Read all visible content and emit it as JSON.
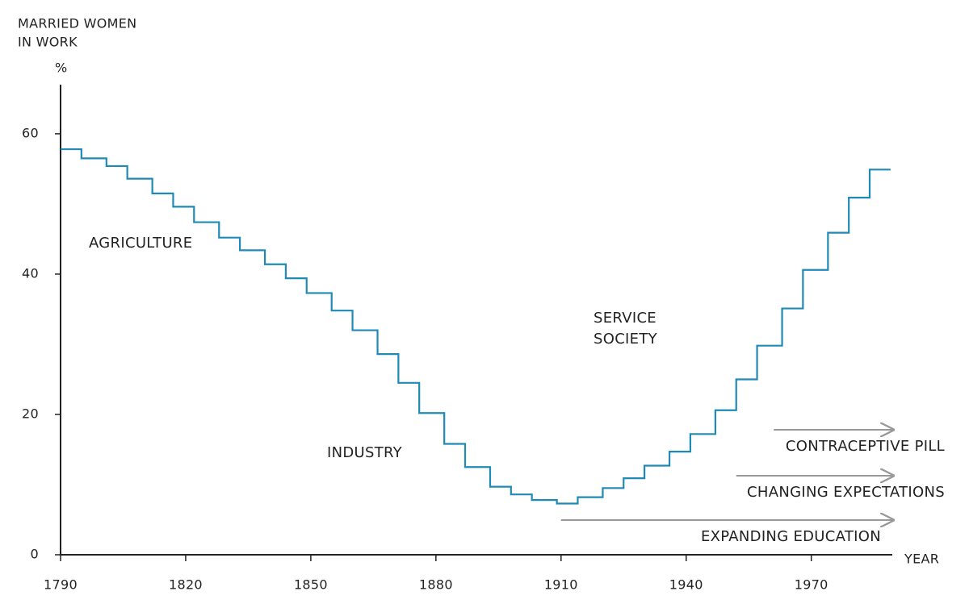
{
  "chart_data": {
    "type": "step",
    "ylabel": [
      "MARRIED WOMEN",
      "IN WORK"
    ],
    "yunit": "%",
    "xlabel": "YEAR",
    "x": [
      1790,
      1795,
      1801,
      1806,
      1812,
      1817,
      1822,
      1828,
      1833,
      1839,
      1844,
      1849,
      1855,
      1860,
      1866,
      1871,
      1876,
      1882,
      1887,
      1893,
      1898,
      1903,
      1909,
      1914,
      1920,
      1925,
      1930,
      1936,
      1941,
      1947,
      1952,
      1957,
      1963,
      1968,
      1974,
      1979,
      1984,
      1989
    ],
    "values": [
      57.8,
      56.5,
      55.4,
      53.6,
      51.5,
      49.6,
      47.4,
      45.2,
      43.4,
      41.4,
      39.4,
      37.3,
      34.8,
      32,
      28.6,
      24.5,
      20.2,
      15.8,
      12.5,
      9.7,
      8.6,
      7.8,
      7.3,
      8.2,
      9.5,
      10.9,
      12.7,
      14.7,
      17.2,
      20.6,
      25,
      29.8,
      35.1,
      40.6,
      45.9,
      50.9,
      54.9,
      54.9
    ],
    "color": "#1f8ab5",
    "xlim": [
      1790,
      1990
    ],
    "ylim": [
      0,
      67
    ],
    "xticks": [
      1790,
      1820,
      1850,
      1880,
      1910,
      1940,
      1970
    ],
    "yticks": [
      0,
      20,
      40,
      60
    ],
    "annotations": [
      "AGRICULTURE",
      "INDUSTRY",
      [
        "SERVICE",
        "SOCIETY"
      ]
    ],
    "trends": [
      {
        "label": "CONTRACEPTIVE PILL",
        "start": 1961,
        "end": 1990
      },
      {
        "label": "CHANGING EXPECTATIONS",
        "start": 1952,
        "end": 1990
      },
      {
        "label": "EXPANDING EDUCATION",
        "start": 1910,
        "end": 1990
      }
    ]
  }
}
